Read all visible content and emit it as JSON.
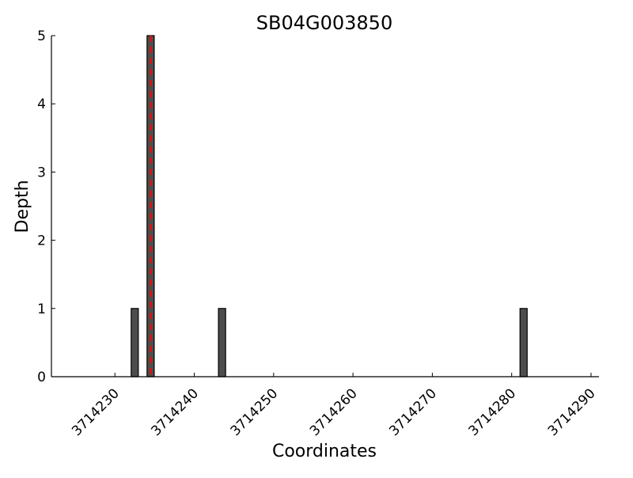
{
  "chart_data": {
    "type": "bar",
    "title": "SB04G003850",
    "xlabel": "Coordinates",
    "ylabel": "Depth",
    "xlim": [
      3714222,
      3714291
    ],
    "ylim": [
      0,
      5
    ],
    "xticks": [
      3714230,
      3714240,
      3714250,
      3714260,
      3714270,
      3714280,
      3714290
    ],
    "yticks": [
      0,
      1,
      2,
      3,
      4,
      5
    ],
    "x": [
      3714232,
      3714234,
      3714243,
      3714281
    ],
    "values": [
      1,
      5,
      1,
      1
    ],
    "bar_color": "#4d4d4d",
    "marker_line": {
      "x": 3714234.5,
      "color": "#ff0000",
      "style": "dashed"
    },
    "grid": false
  }
}
